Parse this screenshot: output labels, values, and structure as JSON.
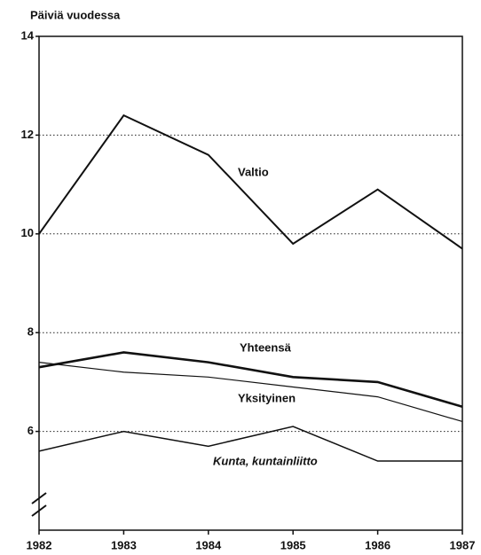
{
  "chart_data": {
    "type": "line",
    "y_label": "Päiviä vuodessa",
    "x": [
      1982,
      1983,
      1984,
      1985,
      1986,
      1987
    ],
    "xlim": [
      1982,
      1987
    ],
    "xticks": [
      1982,
      1983,
      1984,
      1985,
      1986,
      1987
    ],
    "ylim": [
      4,
      14
    ],
    "yticks": [
      6,
      8,
      10,
      12,
      14
    ],
    "grid": true,
    "series": [
      {
        "name": "Valtio",
        "color": "#111111",
        "values": [
          10.0,
          12.4,
          11.6,
          9.8,
          10.9,
          9.7
        ]
      },
      {
        "name": "Yhteensä",
        "color": "#111111",
        "values": [
          7.3,
          7.6,
          7.4,
          7.1,
          7.0,
          6.5
        ]
      },
      {
        "name": "Yksityinen",
        "color": "#111111",
        "values": [
          7.4,
          7.2,
          7.1,
          6.9,
          6.7,
          6.2
        ]
      },
      {
        "name": "Kunta, kuntainliitto",
        "color": "#111111",
        "values": [
          5.6,
          6.0,
          5.7,
          6.1,
          5.4,
          5.4
        ]
      }
    ]
  }
}
